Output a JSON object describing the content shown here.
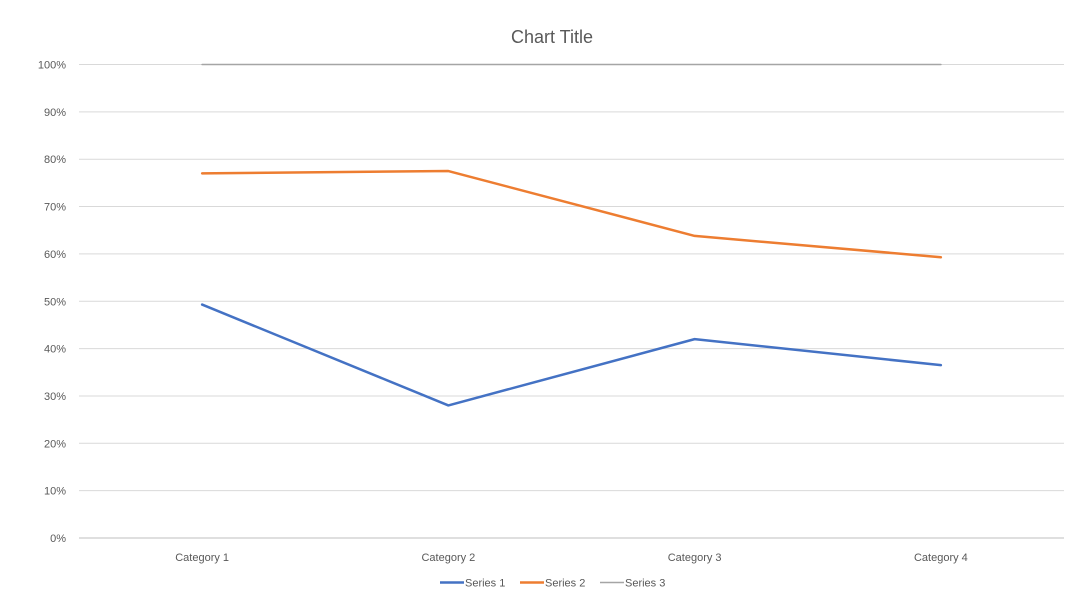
{
  "chart_data": {
    "type": "line",
    "title": "Chart Title",
    "xlabel": "",
    "ylabel": "",
    "categories": [
      "Category 1",
      "Category 2",
      "Category 3",
      "Category 4"
    ],
    "y_tick_labels": [
      "0%",
      "10%",
      "20%",
      "30%",
      "40%",
      "50%",
      "60%",
      "70%",
      "80%",
      "90%",
      "100%"
    ],
    "ylim": [
      0,
      1
    ],
    "grid": "horizontal",
    "legend_position": "bottom",
    "series": [
      {
        "name": "Series 1",
        "color": "#4472C4",
        "values": [
          0.493,
          0.28,
          0.42,
          0.365
        ]
      },
      {
        "name": "Series 2",
        "color": "#ED7D31",
        "values": [
          0.77,
          0.775,
          0.638,
          0.593
        ]
      },
      {
        "name": "Series 3",
        "color": "#A5A5A5",
        "values": [
          1.0,
          1.0,
          1.0,
          1.0
        ]
      }
    ]
  }
}
